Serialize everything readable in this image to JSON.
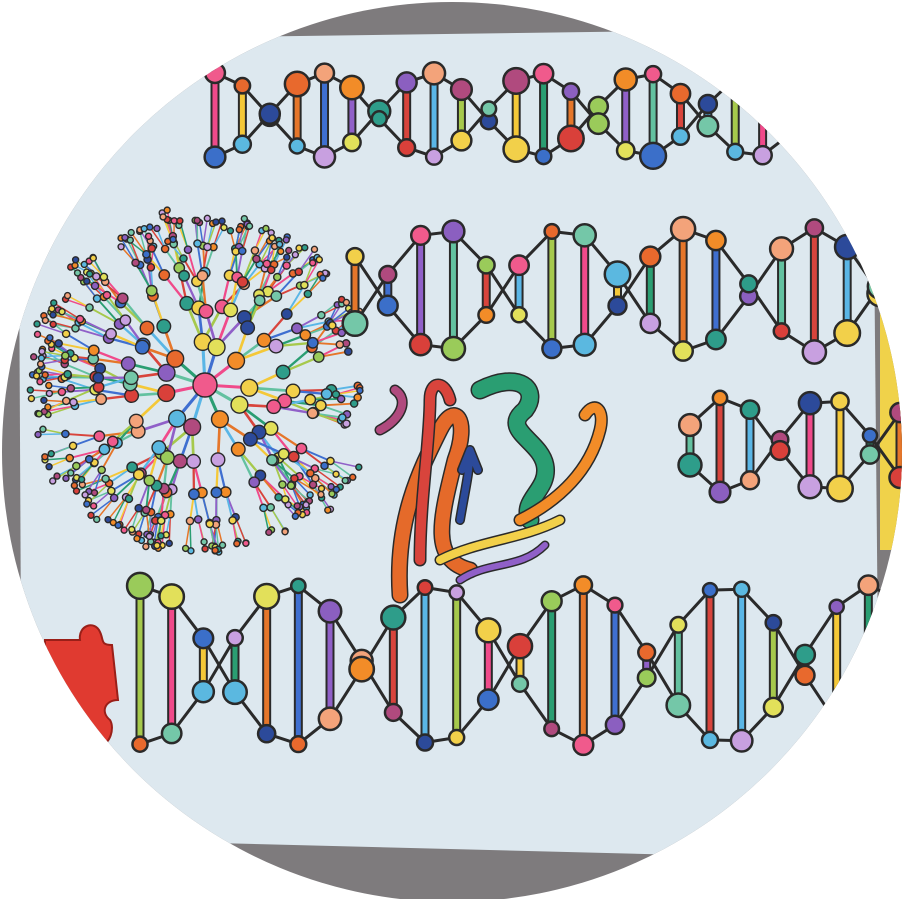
{
  "artwork": {
    "palette": {
      "background": "#ffffff",
      "frame": "#7e7b7d",
      "paper": "#dde8ef",
      "paper_shade": "#cbdbe6",
      "outline": "#2a2a2a",
      "puzzle_red": "#e03a30",
      "yellow_edge": "#f0d24a",
      "beads": [
        "#f05a8c",
        "#f2d04a",
        "#2e9d8a",
        "#e8692d",
        "#3b6fc9",
        "#8b5fc0",
        "#74c7a8",
        "#d9403a",
        "#f3a37a",
        "#5bb8e0",
        "#9acb5a",
        "#b04a7e",
        "#c8a0e0",
        "#f28c28",
        "#2c4a9a",
        "#e2e05a"
      ],
      "rungs": [
        "#f04a8a",
        "#f4c838",
        "#2a9e72",
        "#e5762a",
        "#3f6fd0",
        "#9060c8",
        "#63c1a0",
        "#d8443c",
        "#5ab6e6",
        "#a6c94c"
      ]
    },
    "icons": [
      "dna-helix-icon",
      "molecular-network-icon",
      "protein-ribbon-icon",
      "puzzle-piece-icon"
    ]
  }
}
